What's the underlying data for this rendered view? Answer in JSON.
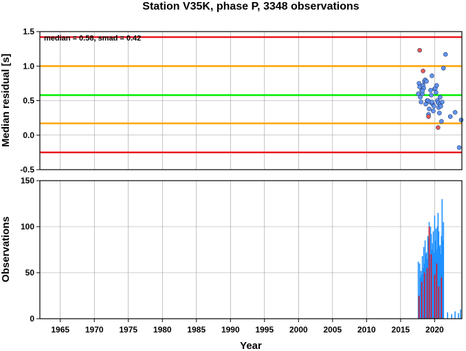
{
  "chart_data": [
    {
      "type": "scatter",
      "title": "Station V35K, phase P, 3348 observations",
      "ylabel": "Median residual [s]",
      "xlim": [
        1962,
        2024
      ],
      "ylim": [
        -0.5,
        1.5
      ],
      "yticks": [
        "-0.5",
        "0.0",
        "0.5",
        "1.0",
        "1.5"
      ],
      "grid": true,
      "annotation": "median = 0.58, smad = 0.42",
      "reference_lines": [
        {
          "y": 1.42,
          "color": "#e8141e"
        },
        {
          "y": 1.0,
          "color": "#ffa500"
        },
        {
          "y": 0.58,
          "color": "#00ee00"
        },
        {
          "y": 0.17,
          "color": "#ffa500"
        },
        {
          "y": -0.25,
          "color": "#e8141e"
        }
      ],
      "series": [
        {
          "color": "#6495ed",
          "x": [
            2017.6,
            2017.7,
            2017.8,
            2017.9,
            2018.0,
            2018.1,
            2018.2,
            2018.3,
            2018.4,
            2018.5,
            2018.6,
            2018.7,
            2018.8,
            2018.9,
            2019.0,
            2019.1,
            2019.2,
            2019.3,
            2019.4,
            2019.5,
            2019.6,
            2019.7,
            2019.8,
            2019.9,
            2020.0,
            2020.1,
            2020.2,
            2020.3,
            2020.4,
            2020.5,
            2020.6,
            2020.7,
            2020.8,
            2020.9,
            2021.0,
            2021.1,
            2021.3,
            2021.6,
            2022.3,
            2023.0,
            2023.6,
            2023.9,
            2018.2,
            2019.6,
            2020.8
          ],
          "y": [
            0.6,
            0.75,
            0.7,
            0.55,
            0.48,
            0.65,
            0.6,
            0.72,
            0.68,
            0.78,
            0.8,
            0.45,
            0.78,
            0.5,
            0.5,
            0.3,
            0.38,
            0.48,
            0.65,
            0.58,
            0.86,
            0.45,
            0.35,
            0.42,
            0.67,
            0.68,
            0.62,
            0.72,
            0.5,
            0.47,
            0.4,
            0.32,
            0.45,
            0.42,
            0.2,
            0.48,
            0.97,
            1.17,
            0.27,
            0.33,
            -0.18,
            0.22,
            0.64,
            0.48,
            0.55
          ]
        },
        {
          "color": "#f05a50",
          "x": [
            2017.8,
            2018.3,
            2019.1,
            2020.5
          ],
          "y": [
            1.23,
            0.93,
            0.27,
            0.11
          ]
        }
      ]
    },
    {
      "type": "bar",
      "xlabel": "Year",
      "ylabel": "Observations",
      "xlim": [
        1962,
        2024
      ],
      "ylim": [
        0,
        150
      ],
      "yticks": [
        "0",
        "50",
        "100",
        "150"
      ],
      "xticks": [
        "1965",
        "1970",
        "1975",
        "1980",
        "1985",
        "1990",
        "1995",
        "2000",
        "2005",
        "2010",
        "2015",
        "2020"
      ],
      "grid": true,
      "series": [
        {
          "color": "#1e90ff",
          "x": [
            2017.6,
            2017.7,
            2017.8,
            2017.9,
            2018.0,
            2018.1,
            2018.2,
            2018.3,
            2018.4,
            2018.5,
            2018.6,
            2018.7,
            2018.8,
            2018.9,
            2019.0,
            2019.1,
            2019.2,
            2019.3,
            2019.4,
            2019.5,
            2019.6,
            2019.7,
            2019.8,
            2019.9,
            2020.0,
            2020.1,
            2020.2,
            2020.3,
            2020.4,
            2020.5,
            2020.6,
            2020.7,
            2020.8,
            2020.9,
            2021.0,
            2021.1,
            2021.2,
            2021.3,
            2021.9,
            2022.5,
            2023.0,
            2023.5,
            2023.8
          ],
          "values": [
            62,
            20,
            60,
            45,
            52,
            48,
            68,
            55,
            78,
            60,
            85,
            70,
            72,
            65,
            90,
            88,
            105,
            70,
            100,
            92,
            75,
            82,
            95,
            72,
            112,
            85,
            98,
            75,
            100,
            115,
            95,
            78,
            80,
            70,
            90,
            130,
            85,
            105,
            7,
            5,
            8,
            6,
            10
          ]
        },
        {
          "color": "#e8141e",
          "x": [
            2017.7,
            2018.1,
            2018.5,
            2018.9,
            2019.2,
            2019.5,
            2020.0,
            2020.3,
            2020.6,
            2021.0
          ],
          "values": [
            25,
            40,
            50,
            55,
            100,
            70,
            48,
            60,
            35,
            45
          ]
        }
      ]
    }
  ]
}
